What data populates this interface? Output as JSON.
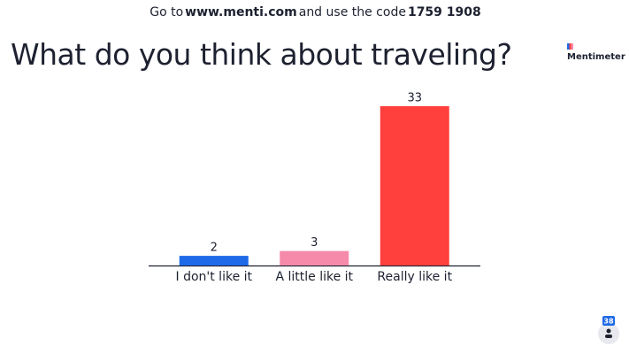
{
  "header": {
    "prefix": "Go to",
    "url": "www.menti.com",
    "middle": "and use the code",
    "code": "1759 1908"
  },
  "logo": "Mentimeter",
  "participants": 38,
  "chart_data": {
    "type": "bar",
    "title": "What do you think about traveling?",
    "categories": [
      "I don't like it",
      "A little like it",
      "Really like it"
    ],
    "values": [
      2,
      3,
      33
    ],
    "colors": [
      "#1f6ae8",
      "#f58aaa",
      "#ff403d"
    ]
  }
}
